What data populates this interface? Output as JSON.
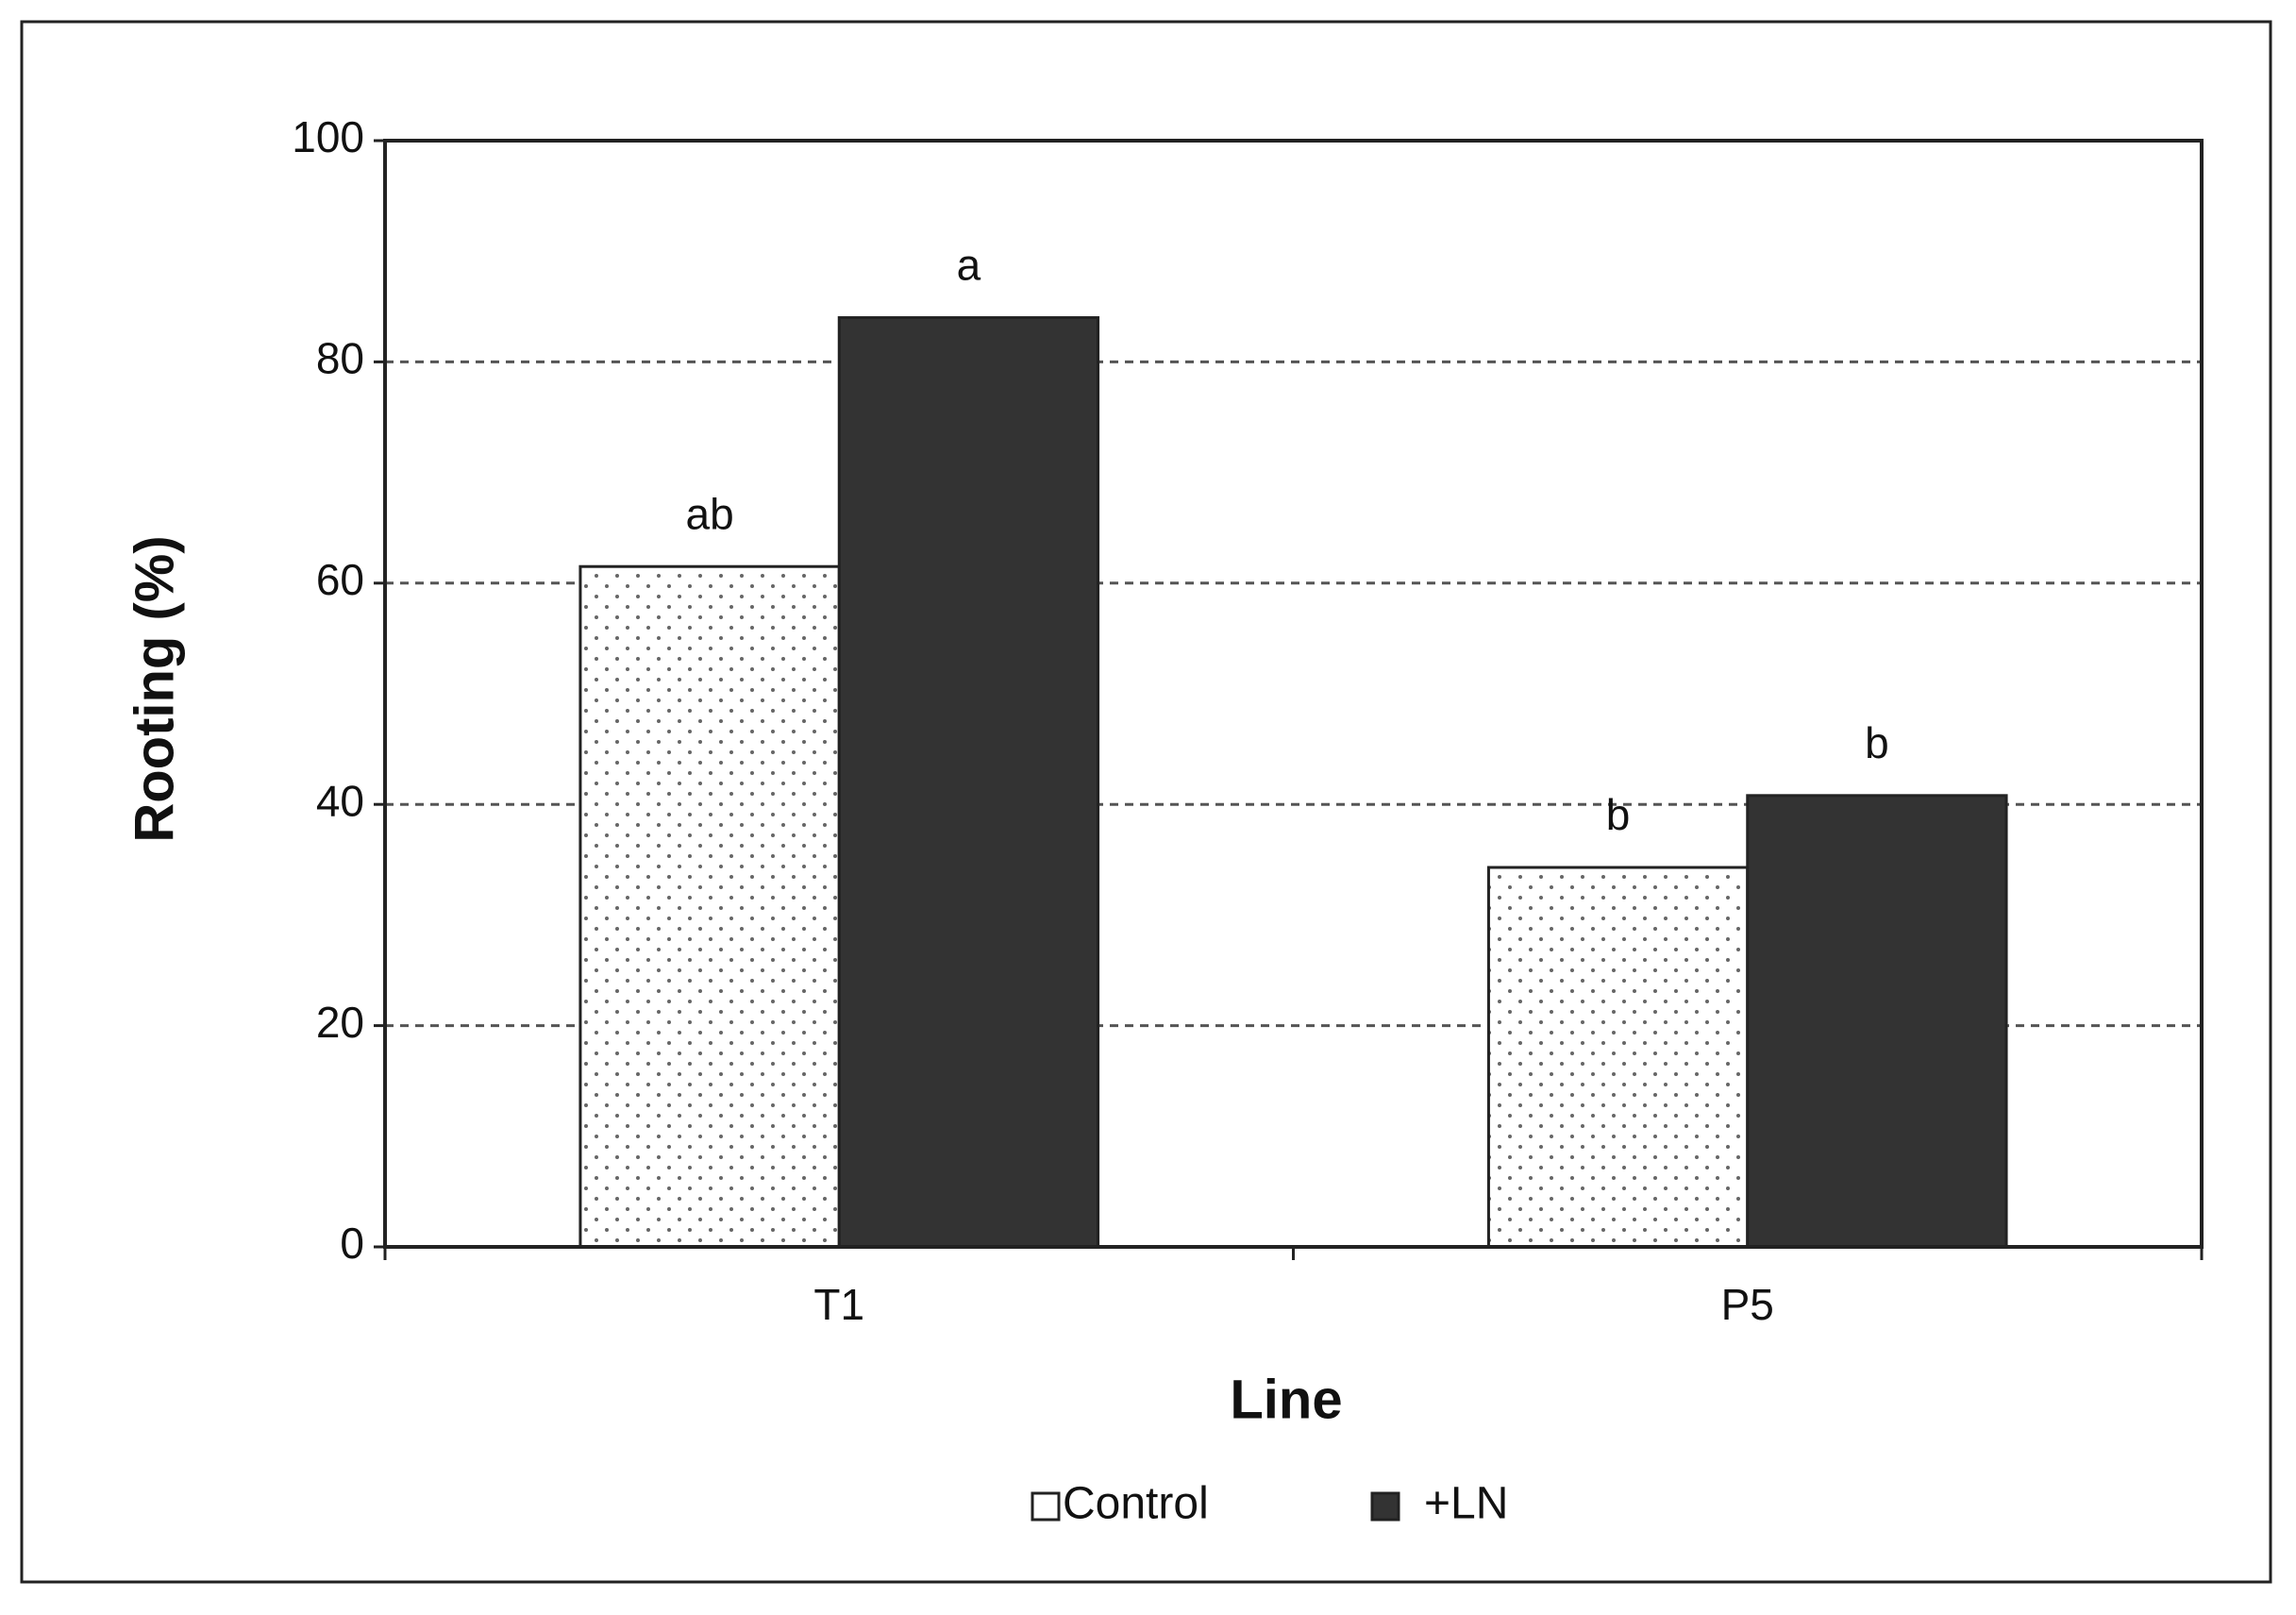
{
  "chart_data": {
    "type": "bar",
    "x_label": "Line",
    "y_label": "Rooting (%)",
    "categories": [
      "T1",
      "P5"
    ],
    "series": [
      {
        "name": "Control",
        "color": "#ffffff",
        "pattern": "dots",
        "values": [
          61.5,
          34.3
        ],
        "annotations": [
          "ab",
          "b"
        ]
      },
      {
        "name": "+LN",
        "color": "#333333",
        "values": [
          84,
          40.8
        ],
        "annotations": [
          "a",
          "b"
        ]
      }
    ],
    "ylim": [
      0,
      100
    ],
    "yticks": [
      0,
      20,
      40,
      60,
      80,
      100
    ],
    "grid": true
  }
}
